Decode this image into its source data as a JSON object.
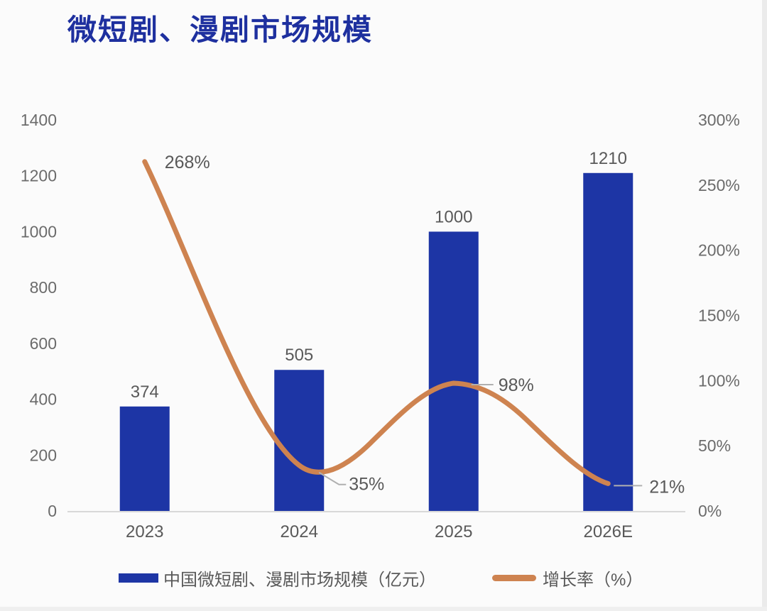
{
  "header": {
    "title": "微短剧、漫剧市场规模",
    "title_color": "#1e309f"
  },
  "chart_data": {
    "type": "bar+line combo",
    "title": "微短剧、漫剧市场规模",
    "categories": [
      "2023",
      "2024",
      "2025",
      "2026E"
    ],
    "series": [
      {
        "name": "中国微短剧、漫剧市场规模（亿元）",
        "type": "bar",
        "axis": "left",
        "color": "#1d35a5",
        "values": [
          374,
          505,
          1000,
          1210
        ],
        "value_labels": [
          "374",
          "505",
          "1000",
          "1210"
        ]
      },
      {
        "name": "增长率（%）",
        "type": "line",
        "axis": "right",
        "color": "#ce8350",
        "values": [
          268,
          35,
          98,
          21
        ],
        "value_labels": [
          "268%",
          "35%",
          "98%",
          "21%"
        ]
      }
    ],
    "left_axis": {
      "min": 0,
      "max": 1400,
      "tick_labels": [
        "0",
        "200",
        "400",
        "600",
        "800",
        "1000",
        "1200",
        "1400"
      ]
    },
    "right_axis": {
      "min": 0,
      "max": 300,
      "tick_labels": [
        "0%",
        "50%",
        "100%",
        "150%",
        "200%",
        "250%",
        "300%"
      ]
    },
    "grid": false,
    "legend_position": "bottom"
  },
  "legend": {
    "items": [
      {
        "label": "中国微短剧、漫剧市场规模（亿元）",
        "color": "#1d35a5",
        "swatch": "rect"
      },
      {
        "label": "增长率（%）",
        "color": "#ce8350",
        "swatch": "line"
      }
    ]
  },
  "colors": {
    "axis_text": "#6b6b6b",
    "data_label": "#595959",
    "baseline": "#d8d8d8",
    "leader": "#b0b0b0"
  }
}
